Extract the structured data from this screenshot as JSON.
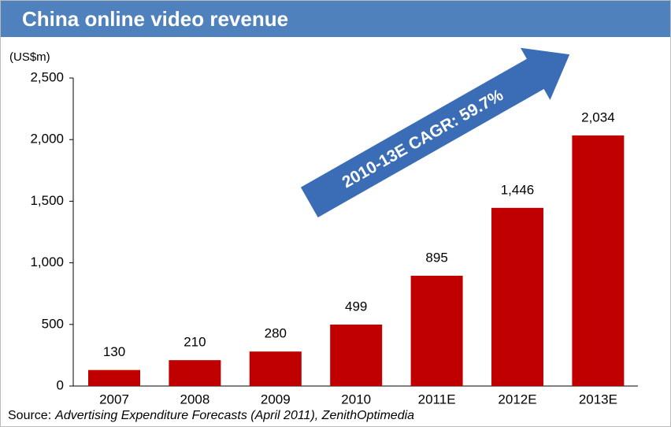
{
  "chart_data": {
    "type": "bar",
    "title": "China online video revenue",
    "y_axis_label": "(US$m)",
    "categories": [
      "2007",
      "2008",
      "2009",
      "2010",
      "2011E",
      "2012E",
      "2013E"
    ],
    "values": [
      130,
      210,
      280,
      499,
      895,
      1446,
      2034
    ],
    "value_labels": [
      "130",
      "210",
      "280",
      "499",
      "895",
      "1,446",
      "2,034"
    ],
    "color": "#c00000",
    "ylim": [
      0,
      2500
    ],
    "yticks": [
      0,
      500,
      {
        "value": 1000,
        "label": "1,000"
      },
      {
        "value": 1500,
        "label": "1,500"
      },
      {
        "value": 2000,
        "label": "2,000"
      },
      {
        "value": 2500,
        "label": "2,500"
      }
    ],
    "annotation": "2010-13E CAGR: 59.7%",
    "source_label": "Source:",
    "source": "Advertising Expenditure Forecasts (April 2011), ZenithOptimedia"
  }
}
